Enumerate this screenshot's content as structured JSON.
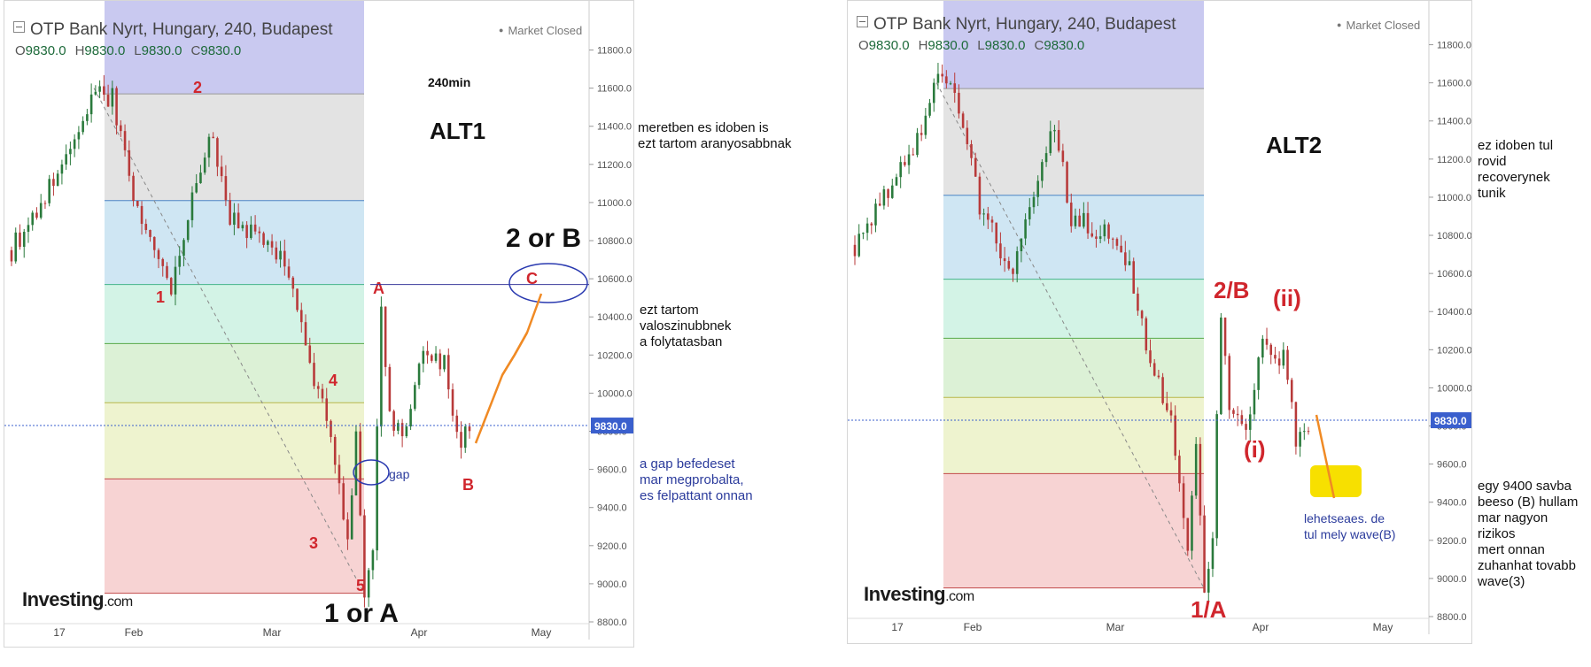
{
  "header": {
    "title": "OTP Bank Nyrt, Hungary, 240, Budapest",
    "ohlc": [
      {
        "label": "O",
        "value": "9830.0"
      },
      {
        "label": "H",
        "value": "9830.0"
      },
      {
        "label": "L",
        "value": "9830.0"
      },
      {
        "label": "C",
        "value": "9830.0"
      }
    ],
    "market_status": "Market Closed",
    "logo_text": "Investing",
    "logo_suffix": ".com"
  },
  "colors": {
    "up": "#2a7a3c",
    "down": "#b83a3a",
    "price_line": "#3a5fcd",
    "fib_zones": [
      "#c9c9f0",
      "#e3e3e3",
      "#cfe6f3",
      "#d3f3e6",
      "#dcf1d6",
      "#eef3cf",
      "#f7d3d3"
    ],
    "wave_label": "#d0262d",
    "path": "#f08a24"
  },
  "chart_data": [
    {
      "type": "candlestick",
      "title": "OTP Bank Nyrt, Hungary, 240, Budapest",
      "ylim": [
        8800,
        11900
      ],
      "y_ticks": [
        11800,
        11600,
        11400,
        11200,
        11000,
        10800,
        10600,
        10400,
        10200,
        10000,
        9800,
        9600,
        9400,
        9200,
        9000,
        8800
      ],
      "x_tick_labels": [
        "17",
        "Feb",
        "Mar",
        "Apr",
        "May"
      ],
      "last_price": "9830.0",
      "fib_levels": [
        11570,
        11010,
        10570,
        10260,
        9950,
        9550,
        8950
      ],
      "annotations": [
        "240min",
        "ALT1",
        "2 or B",
        "1 or A",
        "1",
        "2",
        "3",
        "4",
        "5",
        "A",
        "B",
        "C",
        "gap"
      ]
    },
    {
      "type": "candlestick",
      "title": "OTP Bank Nyrt, Hungary, 240, Budapest",
      "ylim": [
        8800,
        11900
      ],
      "y_ticks": [
        11800,
        11600,
        11400,
        11200,
        11000,
        10800,
        10600,
        10400,
        10200,
        10000,
        9800,
        9600,
        9400,
        9200,
        9000,
        8800
      ],
      "x_tick_labels": [
        "17",
        "Feb",
        "Mar",
        "Apr",
        "May"
      ],
      "last_price": "9830.0",
      "fib_levels": [
        11570,
        11010,
        10570,
        10260,
        9950,
        9550,
        8950
      ],
      "annotations": [
        "ALT2",
        "2/B",
        "(ii)",
        "(i)",
        "1/A",
        "lehetseaes.  de\ntul mely wave(B)"
      ]
    }
  ],
  "left": {
    "alt": "ALT1",
    "timeframe": "240min",
    "label_2orB": "2 or B",
    "label_1orA": "1 or A",
    "waves": {
      "w1": "1",
      "w2": "2",
      "w3": "3",
      "w4": "4",
      "w5": "5",
      "wA": "A",
      "wB": "B",
      "wC": "C"
    },
    "gap": "gap"
  },
  "right": {
    "alt": "ALT2",
    "label_2B": "2/B",
    "label_ii": "(ii)",
    "label_i": "(i)",
    "label_1A": "1/A",
    "note": "lehetseaes.  de\ntul mely wave(B)"
  },
  "notes": {
    "n1": "meretben es idoben is\nezt tartom aranyosabbnak",
    "n2": "ezt tartom\nvaloszinubbnek\na folytatasban",
    "n3": "a gap befedeset\nmar megprobalta,\nes felpattant onnan",
    "n4": "ez idoben tul\nrovid\nrecoverynek\ntunik",
    "n5": "egy 9400 savba\nbeeso (B) hullam\nmar nagyon\nrizikos\nmert onnan\nzuhanhat tovabb\nwave(3)"
  }
}
